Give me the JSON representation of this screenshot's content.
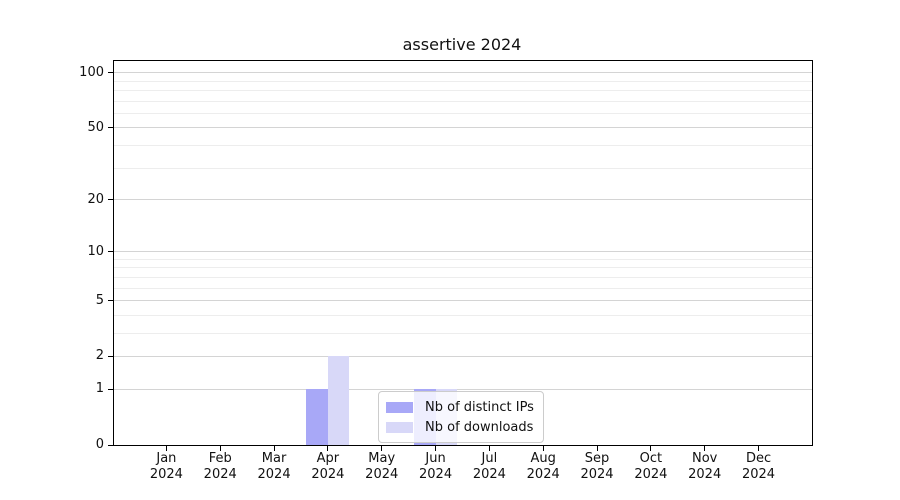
{
  "chart_data": {
    "type": "bar",
    "title": "assertive 2024",
    "categories": [
      "Jan",
      "Feb",
      "Mar",
      "Apr",
      "May",
      "Jun",
      "Jul",
      "Aug",
      "Sep",
      "Oct",
      "Nov",
      "Dec"
    ],
    "category_year": "2024",
    "series": [
      {
        "name": "Nb of distinct IPs",
        "color": "#a8a8f7",
        "values": [
          0,
          0,
          0,
          1,
          0,
          1,
          0,
          0,
          0,
          0,
          0,
          0
        ]
      },
      {
        "name": "Nb of downloads",
        "color": "#d8d8f8",
        "values": [
          0,
          0,
          0,
          2,
          0,
          1,
          0,
          0,
          0,
          0,
          0,
          0
        ]
      }
    ],
    "y_axis": {
      "scale": "log1p",
      "max": 116,
      "major_ticks": [
        0,
        1,
        2,
        5,
        10,
        20,
        50,
        100
      ],
      "minor_ticks": [
        3,
        4,
        6,
        7,
        8,
        9,
        30,
        40,
        60,
        70,
        80,
        90
      ]
    },
    "x_axis": {
      "tick_label_line2": "2024"
    },
    "legend": {
      "location": "lower center"
    },
    "colors": {
      "grid_major": "#d4d4d4",
      "grid_minor": "#ededed",
      "axis": "#000000",
      "text": "#111111",
      "background": "#ffffff"
    },
    "ylim": [
      0,
      116
    ],
    "grid": true
  }
}
